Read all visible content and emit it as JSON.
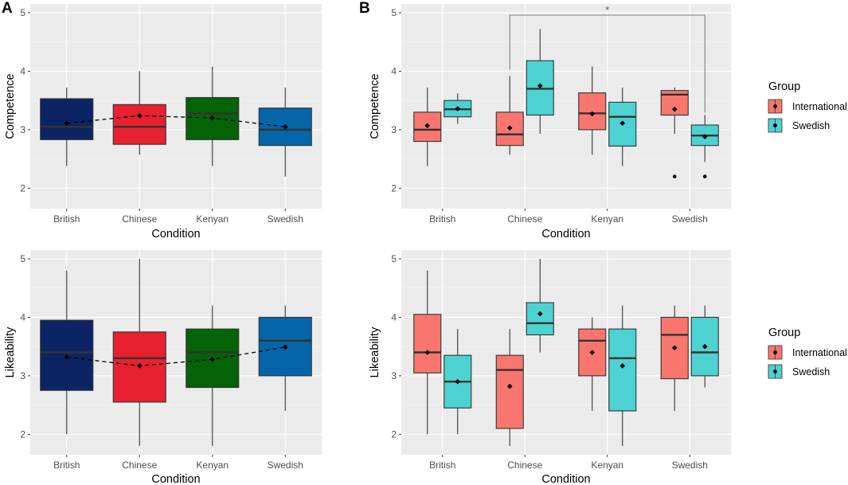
{
  "panel_labels": [
    "A",
    "B"
  ],
  "legend": {
    "title": "Group",
    "items": [
      {
        "label": "International",
        "color": "#f8766d"
      },
      {
        "label": "Swedish",
        "color": "#4ed1d1"
      }
    ]
  },
  "significance": {
    "label": "*",
    "from": "Chinese International",
    "to": "Swedish Swedish"
  },
  "chart_data": [
    {
      "id": "A-competence",
      "type": "box",
      "xlabel": "Condition",
      "ylabel": "Competence",
      "ylim": [
        1.65,
        5.15
      ],
      "yticks": [
        2,
        3,
        4,
        5
      ],
      "categories": [
        "British",
        "Chinese",
        "Kenyan",
        "Swedish"
      ],
      "mean_line": true,
      "boxes": [
        {
          "category": "British",
          "color": "#0c2463",
          "min": 2.38,
          "q1": 2.83,
          "median": 3.05,
          "q3": 3.53,
          "max": 3.72,
          "mean": 3.11,
          "outliers": []
        },
        {
          "category": "Chinese",
          "color": "#e7212f",
          "min": 2.57,
          "q1": 2.75,
          "median": 3.05,
          "q3": 3.43,
          "max": 4.0,
          "mean": 3.24,
          "outliers": []
        },
        {
          "category": "Kenyan",
          "color": "#046307",
          "min": 2.38,
          "q1": 2.83,
          "median": 3.28,
          "q3": 3.55,
          "max": 4.08,
          "mean": 3.2,
          "outliers": []
        },
        {
          "category": "Swedish",
          "color": "#0565a8",
          "min": 2.2,
          "q1": 2.73,
          "median": 3.0,
          "q3": 3.37,
          "max": 3.72,
          "mean": 3.05,
          "outliers": []
        }
      ]
    },
    {
      "id": "B-competence",
      "type": "box",
      "xlabel": "Condition",
      "ylabel": "Competence",
      "ylim": [
        1.65,
        5.15
      ],
      "yticks": [
        2,
        3,
        4,
        5
      ],
      "categories": [
        "British",
        "Chinese",
        "Kenyan",
        "Swedish"
      ],
      "grouped": true,
      "series": [
        {
          "name": "International",
          "color": "#f8766d",
          "boxes": [
            {
              "category": "British",
              "min": 2.38,
              "q1": 2.8,
              "median": 3.0,
              "q3": 3.3,
              "max": 3.72,
              "mean": 3.07,
              "outliers": []
            },
            {
              "category": "Chinese",
              "min": 2.57,
              "q1": 2.73,
              "median": 2.92,
              "q3": 3.3,
              "max": 3.92,
              "mean": 3.03,
              "outliers": []
            },
            {
              "category": "Kenyan",
              "min": 2.57,
              "q1": 3.0,
              "median": 3.28,
              "q3": 3.63,
              "max": 4.08,
              "mean": 3.27,
              "outliers": []
            },
            {
              "category": "Swedish",
              "min": 2.93,
              "q1": 3.25,
              "median": 3.6,
              "q3": 3.67,
              "max": 3.72,
              "mean": 3.35,
              "outliers": [
                2.2
              ]
            }
          ]
        },
        {
          "name": "Swedish",
          "color": "#4ed1d1",
          "boxes": [
            {
              "category": "British",
              "min": 3.1,
              "q1": 3.22,
              "median": 3.35,
              "q3": 3.5,
              "max": 3.62,
              "mean": 3.36,
              "outliers": []
            },
            {
              "category": "Chinese",
              "min": 2.93,
              "q1": 3.25,
              "median": 3.7,
              "q3": 4.18,
              "max": 4.72,
              "mean": 3.75,
              "outliers": []
            },
            {
              "category": "Kenyan",
              "min": 2.38,
              "q1": 2.72,
              "median": 3.22,
              "q3": 3.47,
              "max": 3.72,
              "mean": 3.11,
              "outliers": []
            },
            {
              "category": "Swedish",
              "min": 2.45,
              "q1": 2.73,
              "median": 2.9,
              "q3": 3.08,
              "max": 3.25,
              "mean": 2.88,
              "outliers": [
                2.2
              ]
            }
          ]
        }
      ]
    },
    {
      "id": "A-likeability",
      "type": "box",
      "xlabel": "Condition",
      "ylabel": "Likeability",
      "ylim": [
        1.65,
        5.15
      ],
      "yticks": [
        2,
        3,
        4,
        5
      ],
      "categories": [
        "British",
        "Chinese",
        "Kenyan",
        "Swedish"
      ],
      "mean_line": true,
      "boxes": [
        {
          "category": "British",
          "color": "#0c2463",
          "min": 2.0,
          "q1": 2.75,
          "median": 3.4,
          "q3": 3.95,
          "max": 4.8,
          "mean": 3.32,
          "outliers": []
        },
        {
          "category": "Chinese",
          "color": "#e7212f",
          "min": 1.8,
          "q1": 2.55,
          "median": 3.3,
          "q3": 3.75,
          "max": 5.0,
          "mean": 3.17,
          "outliers": []
        },
        {
          "category": "Kenyan",
          "color": "#046307",
          "min": 1.8,
          "q1": 2.8,
          "median": 3.4,
          "q3": 3.8,
          "max": 4.2,
          "mean": 3.28,
          "outliers": []
        },
        {
          "category": "Swedish",
          "color": "#0565a8",
          "min": 2.4,
          "q1": 3.0,
          "median": 3.6,
          "q3": 4.0,
          "max": 4.2,
          "mean": 3.49,
          "outliers": []
        }
      ]
    },
    {
      "id": "B-likeability",
      "type": "box",
      "xlabel": "Condition",
      "ylabel": "Likeability",
      "ylim": [
        1.65,
        5.15
      ],
      "yticks": [
        2,
        3,
        4,
        5
      ],
      "categories": [
        "British",
        "Chinese",
        "Kenyan",
        "Swedish"
      ],
      "grouped": true,
      "series": [
        {
          "name": "International",
          "color": "#f8766d",
          "boxes": [
            {
              "category": "British",
              "min": 2.0,
              "q1": 3.05,
              "median": 3.4,
              "q3": 4.05,
              "max": 4.8,
              "mean": 3.4,
              "outliers": []
            },
            {
              "category": "Chinese",
              "min": 1.8,
              "q1": 2.1,
              "median": 3.1,
              "q3": 3.35,
              "max": 3.8,
              "mean": 2.82,
              "outliers": []
            },
            {
              "category": "Kenyan",
              "min": 2.4,
              "q1": 3.0,
              "median": 3.6,
              "q3": 3.8,
              "max": 4.0,
              "mean": 3.4,
              "outliers": []
            },
            {
              "category": "Swedish",
              "min": 2.4,
              "q1": 2.95,
              "median": 3.7,
              "q3": 4.0,
              "max": 4.2,
              "mean": 3.48,
              "outliers": []
            }
          ]
        },
        {
          "name": "Swedish",
          "color": "#4ed1d1",
          "boxes": [
            {
              "category": "British",
              "min": 2.0,
              "q1": 2.45,
              "median": 2.9,
              "q3": 3.35,
              "max": 3.8,
              "mean": 2.9,
              "outliers": []
            },
            {
              "category": "Chinese",
              "min": 3.4,
              "q1": 3.7,
              "median": 3.9,
              "q3": 4.25,
              "max": 5.0,
              "mean": 4.06,
              "outliers": []
            },
            {
              "category": "Kenyan",
              "min": 1.8,
              "q1": 2.4,
              "median": 3.3,
              "q3": 3.8,
              "max": 4.2,
              "mean": 3.17,
              "outliers": []
            },
            {
              "category": "Swedish",
              "min": 2.8,
              "q1": 3.0,
              "median": 3.4,
              "q3": 4.0,
              "max": 4.2,
              "mean": 3.5,
              "outliers": []
            }
          ]
        }
      ]
    }
  ]
}
